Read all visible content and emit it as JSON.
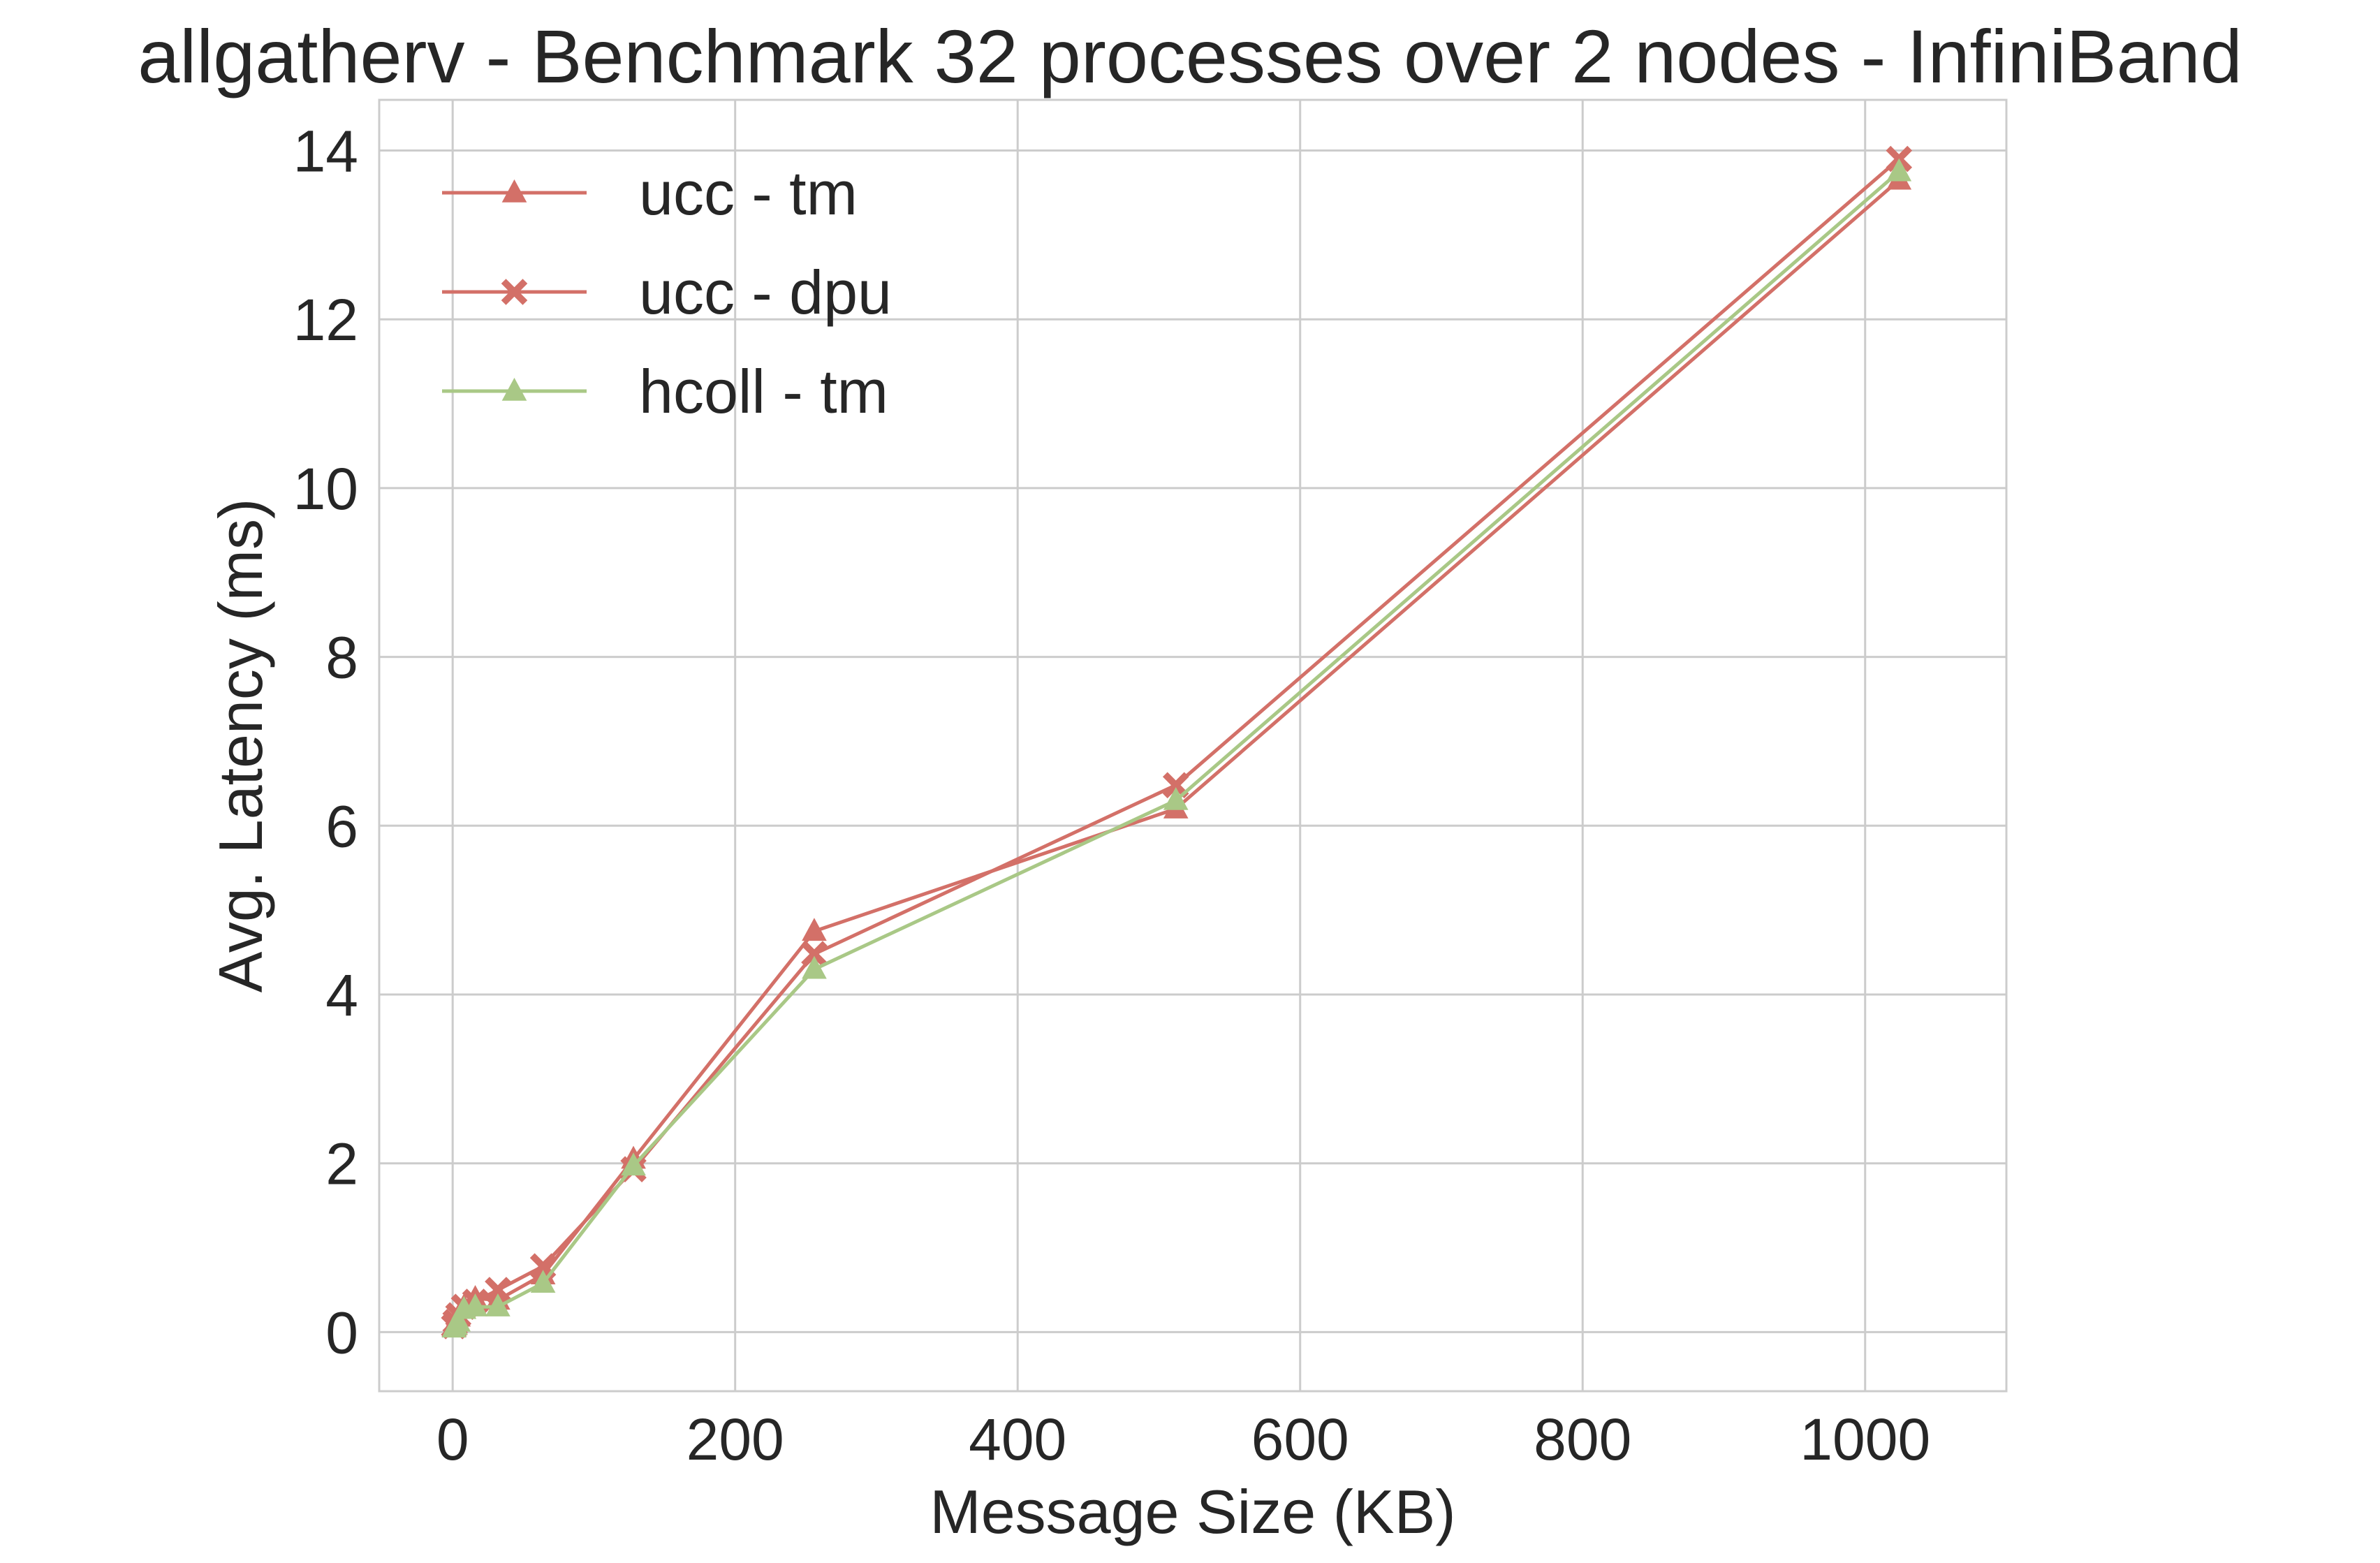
{
  "chart_data": {
    "type": "line",
    "title": "allgatherv - Benchmark 32 processes over 2 nodes - InfiniBand",
    "xlabel": "Message Size (KB)",
    "ylabel": "Avg. Latency (ms)",
    "xlim": [
      -52,
      1100
    ],
    "ylim": [
      -0.7,
      14.6
    ],
    "xticks": [
      0,
      200,
      400,
      600,
      800,
      1000
    ],
    "yticks": [
      0,
      2,
      4,
      6,
      8,
      10,
      12,
      14
    ],
    "xtick_labels": [
      "0",
      "200",
      "400",
      "600",
      "800",
      "1000"
    ],
    "ytick_labels": [
      "0",
      "2",
      "4",
      "6",
      "8",
      "10",
      "12",
      "14"
    ],
    "grid": true,
    "legend_position": "top-left",
    "x": [
      1,
      2,
      4,
      8,
      16,
      32,
      64,
      128,
      256,
      512,
      1024
    ],
    "series": [
      {
        "name": "ucc - tm",
        "color": "#d37068",
        "marker": "triangle",
        "values": [
          0.06,
          0.1,
          0.18,
          0.3,
          0.4,
          0.38,
          0.68,
          2.05,
          4.75,
          6.2,
          13.65
        ]
      },
      {
        "name": "ucc - dpu",
        "color": "#d37068",
        "marker": "x",
        "values": [
          0.07,
          0.12,
          0.2,
          0.3,
          0.36,
          0.5,
          0.78,
          1.93,
          4.48,
          6.48,
          13.9
        ]
      },
      {
        "name": "hcoll - tm",
        "color": "#a9c886",
        "marker": "triangle",
        "values": [
          0.05,
          0.08,
          0.12,
          0.27,
          0.3,
          0.3,
          0.58,
          1.97,
          4.3,
          6.3,
          13.75
        ]
      }
    ]
  }
}
